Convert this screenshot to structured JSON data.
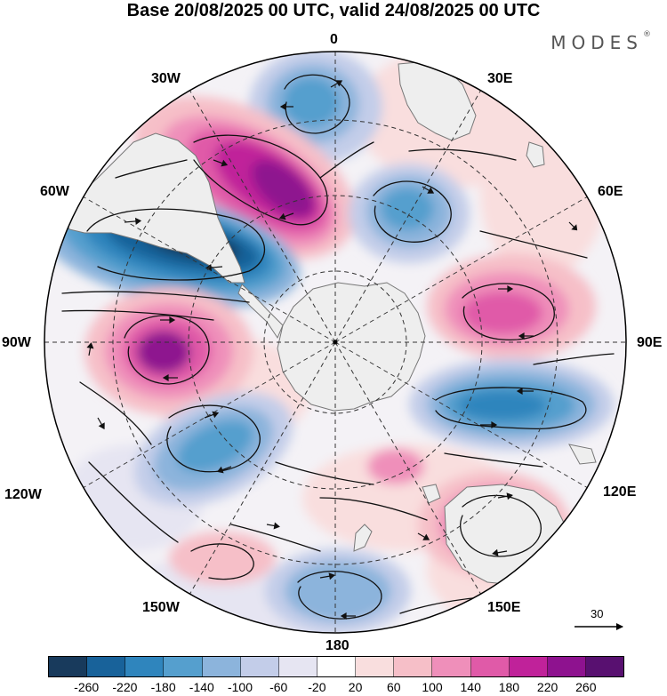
{
  "title": "Base 20/08/2025 00 UTC, valid 24/08/2025 00 UTC",
  "brand": "MODES",
  "brand_mark": "®",
  "lon_labels": {
    "l0": "0",
    "l30e": "30E",
    "l60e": "60E",
    "l90e": "90E",
    "l120e": "120E",
    "l150e": "150E",
    "l180": "180",
    "l150w": "150W",
    "l120w": "120W",
    "l90w": "90W",
    "l60w": "60W",
    "l30w": "30W"
  },
  "reference_vector": "30",
  "colorbar": {
    "ticks": [
      "-260",
      "-220",
      "-180",
      "-140",
      "-100",
      "-60",
      "-20",
      "20",
      "60",
      "100",
      "140",
      "180",
      "220",
      "260"
    ],
    "colors": [
      "#183a5c",
      "#18629a",
      "#2f85bd",
      "#559fce",
      "#8cb4dc",
      "#c3cde9",
      "#e6e5f2",
      "#ffffff",
      "#f9dede",
      "#f6bfc8",
      "#ef8fba",
      "#e05aa8",
      "#c0229a",
      "#8e128f",
      "#581070"
    ]
  },
  "colors": {
    "land_fill": "#eeeeee",
    "land_edge": "#777777",
    "grid": "#333333",
    "arrow": "#111111"
  }
}
